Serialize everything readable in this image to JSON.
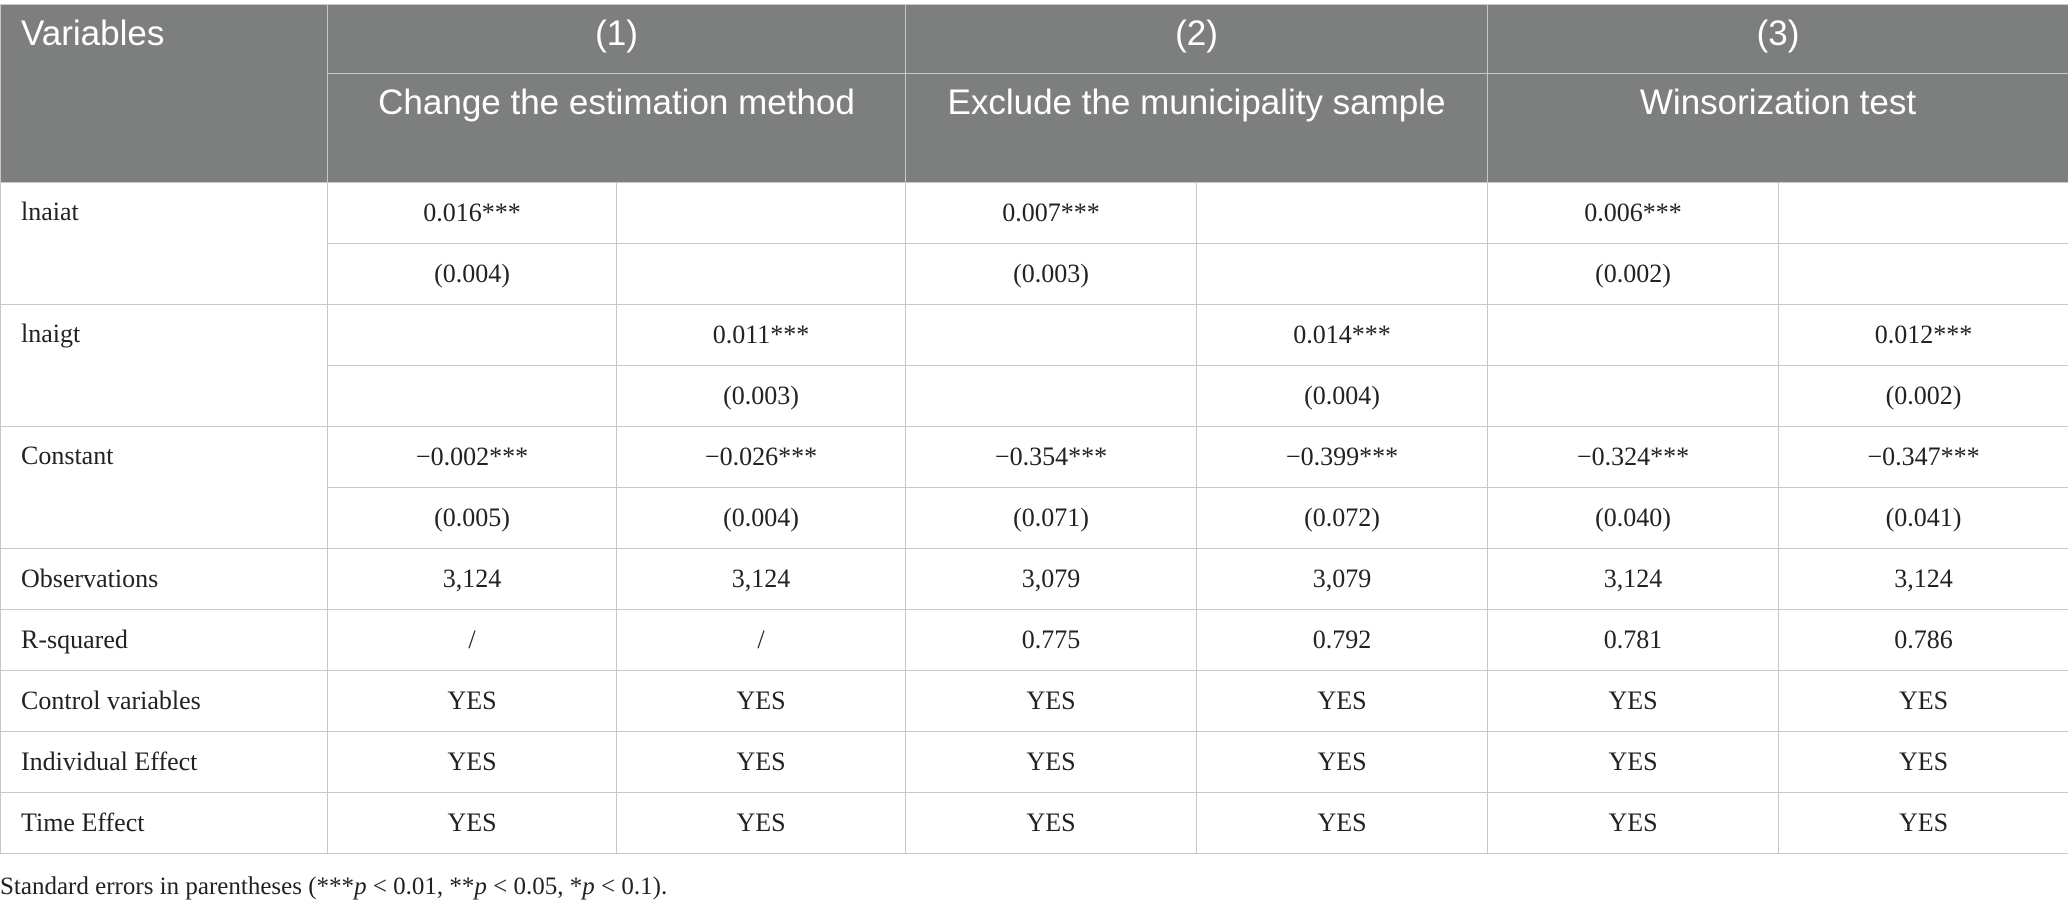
{
  "header": {
    "variables": "Variables",
    "groups": [
      {
        "num": "(1)",
        "title": "Change the estimation method"
      },
      {
        "num": "(2)",
        "title": "Exclude the municipality sample"
      },
      {
        "num": "(3)",
        "title": "Winsorization test"
      }
    ]
  },
  "rows": {
    "lnaiat": {
      "label": "lnaiat",
      "coef": [
        "0.016***",
        "",
        "0.007***",
        "",
        "0.006***",
        ""
      ],
      "se": [
        "(0.004)",
        "",
        "(0.003)",
        "",
        "(0.002)",
        ""
      ]
    },
    "lnaigt": {
      "label": "lnaigt",
      "coef": [
        "",
        "0.011***",
        "",
        "0.014***",
        "",
        "0.012***"
      ],
      "se": [
        "",
        "(0.003)",
        "",
        "(0.004)",
        "",
        "(0.002)"
      ]
    },
    "constant": {
      "label": "Constant",
      "coef": [
        "−0.002***",
        "−0.026***",
        "−0.354***",
        "−0.399***",
        "−0.324***",
        "−0.347***"
      ],
      "se": [
        "(0.005)",
        "(0.004)",
        "(0.071)",
        "(0.072)",
        "(0.040)",
        "(0.041)"
      ]
    },
    "observations": {
      "label": "Observations",
      "values": [
        "3,124",
        "3,124",
        "3,079",
        "3,079",
        "3,124",
        "3,124"
      ]
    },
    "rsquared": {
      "label": "R-squared",
      "values": [
        "/",
        "/",
        "0.775",
        "0.792",
        "0.781",
        "0.786"
      ]
    },
    "controls": {
      "label": "Control variables",
      "values": [
        "YES",
        "YES",
        "YES",
        "YES",
        "YES",
        "YES"
      ]
    },
    "individual": {
      "label": "Individual Effect",
      "values": [
        "YES",
        "YES",
        "YES",
        "YES",
        "YES",
        "YES"
      ]
    },
    "time": {
      "label": "Time Effect",
      "values": [
        "YES",
        "YES",
        "YES",
        "YES",
        "YES",
        "YES"
      ]
    }
  },
  "note": {
    "prefix": "Standard errors in parentheses (***",
    "p1": "p",
    "t1": " < 0.01, **",
    "p2": "p",
    "t2": " < 0.05, *",
    "p3": "p",
    "t3": " < 0.1)."
  }
}
